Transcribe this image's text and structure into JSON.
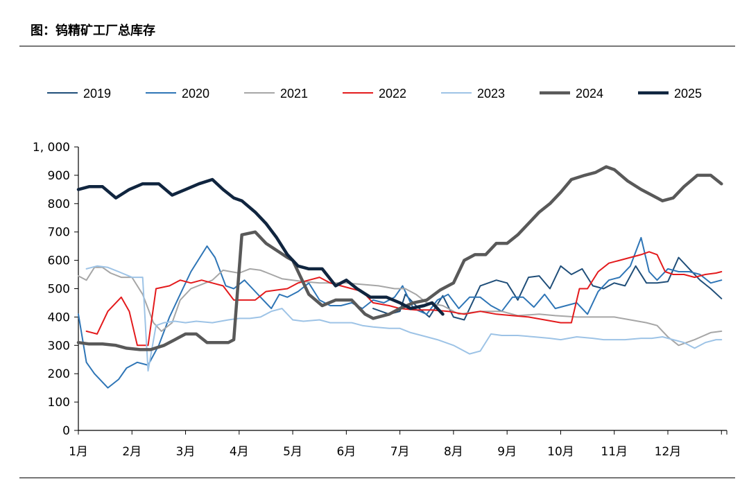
{
  "header": {
    "title": "图：钨精矿工厂总库存"
  },
  "chart_data": {
    "type": "line",
    "title": "",
    "xlabel": "",
    "ylabel": "",
    "ylim": [
      0,
      1000
    ],
    "yticks": [
      0,
      100,
      200,
      300,
      400,
      500,
      600,
      700,
      800,
      900,
      1000
    ],
    "ytick_labels": [
      "0",
      "100",
      "200",
      "300",
      "400",
      "500",
      "600",
      "700",
      "800",
      "900",
      "1, 000"
    ],
    "xlim": [
      1,
      13.1
    ],
    "xticks": [
      1,
      2,
      3,
      4,
      5,
      6,
      7,
      8,
      9,
      10,
      11,
      12
    ],
    "xtick_labels": [
      "1月",
      "2月",
      "3月",
      "4月",
      "5月",
      "6月",
      "7月",
      "8月",
      "9月",
      "10月",
      "11月",
      "12月"
    ],
    "grid": false,
    "legend_position": "top",
    "series": [
      {
        "name": "2019",
        "color": "#1f4e79",
        "width": 2,
        "x": [
          6.5,
          6.8,
          7.0,
          7.1,
          7.3,
          7.55,
          7.8,
          8.0,
          8.2,
          8.4,
          8.5,
          8.8,
          9.0,
          9.2,
          9.4,
          9.6,
          9.8,
          10.0,
          10.2,
          10.4,
          10.6,
          10.8,
          11.0,
          11.2,
          11.4,
          11.6,
          11.8,
          12.0,
          12.2,
          12.4,
          12.6,
          12.8,
          13.0
        ],
        "y": [
          430,
          410,
          420,
          480,
          440,
          400,
          475,
          400,
          390,
          470,
          510,
          530,
          520,
          460,
          540,
          545,
          500,
          580,
          550,
          570,
          510,
          500,
          520,
          510,
          580,
          520,
          520,
          525,
          610,
          570,
          530,
          500,
          465
        ]
      },
      {
        "name": "2020",
        "color": "#2e75b6",
        "width": 2,
        "x": [
          1.0,
          1.15,
          1.3,
          1.55,
          1.75,
          1.9,
          2.1,
          2.3,
          2.5,
          2.7,
          2.9,
          3.1,
          3.4,
          3.55,
          3.75,
          3.9,
          4.1,
          4.25,
          4.45,
          4.6,
          4.75,
          4.9,
          5.1,
          5.3,
          5.5,
          5.7,
          5.9,
          6.1,
          6.3,
          6.5,
          6.7,
          6.9,
          7.05,
          7.25,
          7.5,
          7.7,
          7.9,
          8.1,
          8.3,
          8.5,
          8.7,
          8.9,
          9.1,
          9.3,
          9.5,
          9.7,
          9.9,
          10.1,
          10.3,
          10.5,
          10.7,
          10.9,
          11.1,
          11.3,
          11.5,
          11.65,
          11.8,
          12.0,
          12.2,
          12.4,
          12.6,
          12.8,
          13.0
        ],
        "y": [
          410,
          240,
          200,
          150,
          180,
          220,
          240,
          230,
          300,
          400,
          480,
          560,
          650,
          610,
          510,
          500,
          530,
          500,
          460,
          430,
          480,
          470,
          490,
          520,
          460,
          440,
          440,
          450,
          430,
          460,
          450,
          470,
          510,
          430,
          410,
          460,
          480,
          430,
          470,
          470,
          440,
          420,
          470,
          470,
          435,
          480,
          430,
          440,
          450,
          410,
          490,
          530,
          540,
          580,
          680,
          560,
          530,
          570,
          560,
          560,
          550,
          520,
          530
        ]
      },
      {
        "name": "2021",
        "color": "#a6a6a6",
        "width": 2,
        "x": [
          1.0,
          1.15,
          1.3,
          1.45,
          1.6,
          1.8,
          2.0,
          2.2,
          2.4,
          2.55,
          2.75,
          2.9,
          3.1,
          3.3,
          3.5,
          3.7,
          3.85,
          4.0,
          4.2,
          4.4,
          4.6,
          4.8,
          5.0,
          5.2,
          5.5,
          5.8,
          6.0,
          6.3,
          6.6,
          6.9,
          7.1,
          7.3,
          7.5,
          7.8,
          8.1,
          8.5,
          8.9,
          9.2,
          9.6,
          9.9,
          10.3,
          10.7,
          11.0,
          11.3,
          11.6,
          11.8,
          12.0,
          12.2,
          12.5,
          12.8,
          13.0
        ],
        "y": [
          545,
          530,
          575,
          575,
          555,
          540,
          540,
          480,
          380,
          350,
          380,
          460,
          500,
          515,
          530,
          565,
          560,
          555,
          570,
          565,
          550,
          535,
          530,
          525,
          520,
          520,
          520,
          515,
          510,
          500,
          500,
          480,
          450,
          440,
          410,
          420,
          420,
          405,
          410,
          405,
          400,
          400,
          400,
          390,
          380,
          370,
          330,
          300,
          320,
          345,
          350
        ]
      },
      {
        "name": "2022",
        "color": "#e31a1c",
        "width": 2,
        "x": [
          1.15,
          1.35,
          1.55,
          1.8,
          1.95,
          2.1,
          2.3,
          2.45,
          2.7,
          2.9,
          3.1,
          3.3,
          3.5,
          3.7,
          3.9,
          4.1,
          4.3,
          4.5,
          4.7,
          4.9,
          5.1,
          5.3,
          5.5,
          5.7,
          5.9,
          6.1,
          6.3,
          6.5,
          6.8,
          7.0,
          7.3,
          7.6,
          7.9,
          8.2,
          8.5,
          8.8,
          9.1,
          9.4,
          9.7,
          10.0,
          10.2,
          10.35,
          10.5,
          10.7,
          10.9,
          11.1,
          11.3,
          11.5,
          11.65,
          11.8,
          11.95,
          12.1,
          12.3,
          12.5,
          12.7,
          12.9,
          13.0
        ],
        "y": [
          350,
          340,
          420,
          470,
          420,
          300,
          300,
          500,
          510,
          530,
          520,
          530,
          520,
          510,
          460,
          460,
          460,
          490,
          495,
          500,
          520,
          530,
          540,
          520,
          510,
          500,
          490,
          450,
          440,
          430,
          425,
          425,
          420,
          410,
          420,
          410,
          405,
          400,
          390,
          380,
          380,
          500,
          500,
          560,
          590,
          600,
          610,
          620,
          630,
          620,
          560,
          550,
          550,
          540,
          550,
          555,
          560
        ]
      },
      {
        "name": "2023",
        "color": "#9dc3e6",
        "width": 2,
        "x": [
          1.15,
          1.35,
          1.55,
          1.75,
          2.0,
          2.2,
          2.3,
          2.45,
          2.6,
          2.8,
          3.0,
          3.2,
          3.5,
          3.8,
          4.0,
          4.2,
          4.4,
          4.6,
          4.8,
          5.0,
          5.2,
          5.5,
          5.7,
          5.9,
          6.1,
          6.3,
          6.5,
          6.8,
          7.0,
          7.2,
          7.5,
          7.7,
          8.0,
          8.3,
          8.5,
          8.7,
          8.9,
          9.2,
          9.5,
          9.8,
          10.0,
          10.3,
          10.6,
          10.8,
          11.0,
          11.2,
          11.5,
          11.7,
          11.9,
          12.1,
          12.3,
          12.5,
          12.7,
          12.9,
          13.0
        ],
        "y": [
          570,
          580,
          575,
          560,
          540,
          540,
          210,
          370,
          380,
          385,
          380,
          385,
          380,
          390,
          395,
          395,
          400,
          420,
          430,
          390,
          385,
          390,
          380,
          380,
          380,
          370,
          365,
          360,
          360,
          345,
          330,
          320,
          300,
          270,
          280,
          340,
          335,
          335,
          330,
          325,
          320,
          330,
          325,
          320,
          320,
          320,
          325,
          325,
          330,
          320,
          310,
          290,
          310,
          320,
          320
        ]
      },
      {
        "name": "2024",
        "color": "#595959",
        "width": 4.5,
        "x": [
          1.0,
          1.2,
          1.45,
          1.7,
          1.9,
          2.15,
          2.35,
          2.6,
          2.8,
          3.0,
          3.2,
          3.4,
          3.6,
          3.8,
          3.9,
          4.05,
          4.3,
          4.5,
          4.7,
          4.9,
          5.0,
          5.3,
          5.55,
          5.8,
          6.1,
          6.35,
          6.5,
          6.8,
          7.0,
          7.25,
          7.5,
          7.75,
          8.0,
          8.2,
          8.4,
          8.6,
          8.8,
          9.0,
          9.2,
          9.4,
          9.6,
          9.8,
          10.0,
          10.2,
          10.45,
          10.65,
          10.85,
          11.0,
          11.25,
          11.5,
          11.7,
          11.9,
          12.1,
          12.3,
          12.55,
          12.8,
          13.0
        ],
        "y": [
          310,
          305,
          305,
          300,
          290,
          285,
          285,
          300,
          320,
          340,
          340,
          310,
          310,
          310,
          320,
          690,
          700,
          660,
          635,
          610,
          600,
          480,
          440,
          460,
          460,
          410,
          395,
          410,
          430,
          450,
          460,
          495,
          520,
          600,
          620,
          620,
          660,
          660,
          690,
          730,
          770,
          800,
          840,
          885,
          900,
          910,
          930,
          920,
          880,
          850,
          830,
          810,
          820,
          860,
          900,
          900,
          870
        ]
      },
      {
        "name": "2025",
        "color": "#10253f",
        "width": 4.5,
        "x": [
          1.0,
          1.2,
          1.45,
          1.7,
          1.95,
          2.2,
          2.5,
          2.75,
          3.0,
          3.25,
          3.5,
          3.7,
          3.9,
          4.05,
          4.3,
          4.5,
          4.7,
          4.9,
          5.1,
          5.3,
          5.55,
          5.8,
          6.0,
          6.2,
          6.45,
          6.75,
          7.0,
          7.2,
          7.45,
          7.6,
          7.8
        ],
        "y": [
          850,
          860,
          860,
          820,
          850,
          870,
          870,
          830,
          850,
          870,
          885,
          850,
          820,
          810,
          770,
          730,
          680,
          620,
          580,
          570,
          570,
          510,
          530,
          500,
          470,
          470,
          450,
          430,
          440,
          450,
          410
        ]
      }
    ]
  }
}
